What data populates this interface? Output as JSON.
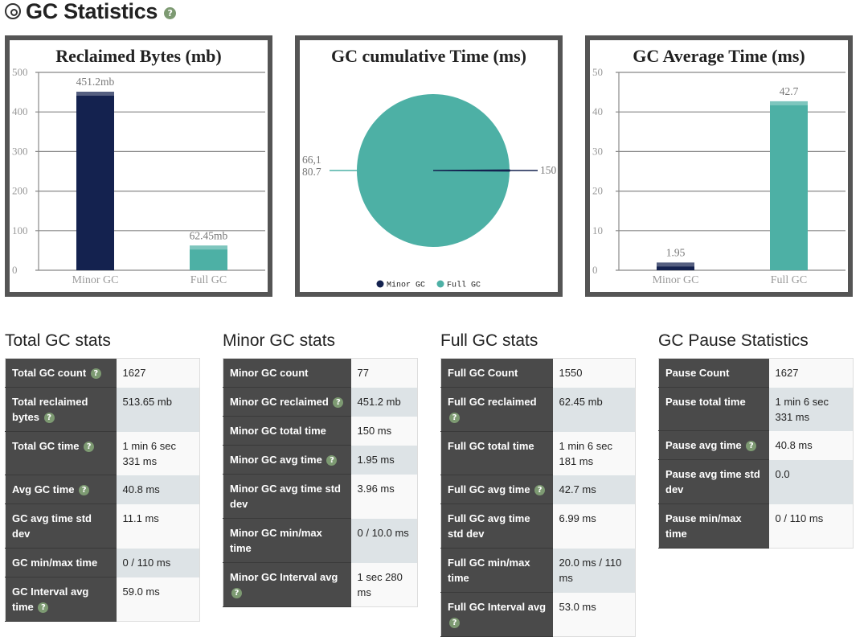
{
  "header": {
    "title": "GC Statistics",
    "help": "?"
  },
  "charts": [
    {
      "type": "bar",
      "title": "Reclaimed Bytes (mb)",
      "ylim": [
        0,
        500
      ],
      "ticks": [
        0,
        100,
        200,
        300,
        400,
        500
      ],
      "categories": [
        "Minor GC",
        "Full GC"
      ],
      "values": [
        451.2,
        62.45
      ],
      "labels": [
        "451.2mb",
        "62.45mb"
      ],
      "colors": [
        "#14224f",
        "#4db0a5"
      ]
    },
    {
      "type": "pie",
      "title": "GC cumulative Time (ms)",
      "slices": [
        {
          "name": "Minor GC",
          "value": 150,
          "label": "150",
          "color": "#14224f"
        },
        {
          "name": "Full GC",
          "value": 66180.7,
          "label": "66,1\n80.7",
          "color": "#4db0a5"
        }
      ],
      "legend": [
        "Minor GC",
        "Full GC"
      ],
      "legend_position": "bottom"
    },
    {
      "type": "bar",
      "title": "GC Average Time (ms)",
      "ylim": [
        0,
        50
      ],
      "ticks": [
        0,
        10,
        20,
        30,
        40,
        50
      ],
      "categories": [
        "Minor GC",
        "Full GC"
      ],
      "values": [
        1.95,
        42.7
      ],
      "labels": [
        "1.95",
        "42.7"
      ],
      "colors": [
        "#14224f",
        "#4db0a5"
      ]
    }
  ],
  "chart_data": [
    {
      "type": "bar",
      "title": "Reclaimed Bytes (mb)",
      "categories": [
        "Minor GC",
        "Full GC"
      ],
      "values": [
        451.2,
        62.45
      ],
      "ylim": [
        0,
        500
      ]
    },
    {
      "type": "pie",
      "title": "GC cumulative Time (ms)",
      "categories": [
        "Minor GC",
        "Full GC"
      ],
      "values": [
        150,
        66180.7
      ]
    },
    {
      "type": "bar",
      "title": "GC Average Time (ms)",
      "categories": [
        "Minor GC",
        "Full GC"
      ],
      "values": [
        1.95,
        42.7
      ],
      "ylim": [
        0,
        50
      ]
    }
  ],
  "tables": {
    "total": {
      "title": "Total GC stats",
      "rows": [
        {
          "key": "Total GC count",
          "help": true,
          "value": "1627"
        },
        {
          "key": "Total reclaimed bytes",
          "help": true,
          "value": "513.65 mb"
        },
        {
          "key": "Total GC time",
          "help": true,
          "value": "1 min 6 sec 331 ms"
        },
        {
          "key": "Avg GC time",
          "help": true,
          "value": "40.8 ms"
        },
        {
          "key": "GC avg time std dev",
          "help": false,
          "value": "11.1 ms"
        },
        {
          "key": "GC min/max time",
          "help": false,
          "value": "0 / 110 ms"
        },
        {
          "key": "GC Interval avg time",
          "help": true,
          "value": "59.0 ms"
        }
      ]
    },
    "minor": {
      "title": "Minor GC stats",
      "rows": [
        {
          "key": "Minor GC count",
          "help": false,
          "value": "77"
        },
        {
          "key": "Minor GC reclaimed",
          "help": true,
          "value": "451.2 mb"
        },
        {
          "key": "Minor GC total time",
          "help": false,
          "value": "150 ms"
        },
        {
          "key": "Minor GC avg time",
          "help": true,
          "value": "1.95 ms"
        },
        {
          "key": "Minor GC avg time std dev",
          "help": false,
          "value": "3.96 ms"
        },
        {
          "key": "Minor GC min/max time",
          "help": false,
          "value": "0 / 10.0 ms"
        },
        {
          "key": "Minor GC Interval avg",
          "help": true,
          "value": "1 sec 280 ms"
        }
      ]
    },
    "full": {
      "title": "Full GC stats",
      "rows": [
        {
          "key": "Full GC Count",
          "help": false,
          "value": "1550"
        },
        {
          "key": "Full GC reclaimed",
          "help": true,
          "value": "62.45 mb"
        },
        {
          "key": "Full GC total time",
          "help": false,
          "value": "1 min 6 sec 181 ms"
        },
        {
          "key": "Full GC avg time",
          "help": true,
          "value": "42.7 ms"
        },
        {
          "key": "Full GC avg time std dev",
          "help": false,
          "value": "6.99 ms"
        },
        {
          "key": "Full GC min/max time",
          "help": false,
          "value": "20.0 ms / 110 ms"
        },
        {
          "key": "Full GC Interval avg",
          "help": true,
          "value": "53.0 ms"
        }
      ]
    },
    "pause": {
      "title": "GC Pause Statistics",
      "rows": [
        {
          "key": "Pause Count",
          "help": false,
          "value": "1627"
        },
        {
          "key": "Pause total time",
          "help": false,
          "value": "1 min 6 sec 331 ms"
        },
        {
          "key": "Pause avg time",
          "help": true,
          "value": "40.8 ms"
        },
        {
          "key": "Pause avg time std dev",
          "help": false,
          "value": "0.0"
        },
        {
          "key": "Pause min/max time",
          "help": false,
          "value": "0 / 110 ms"
        }
      ]
    }
  }
}
